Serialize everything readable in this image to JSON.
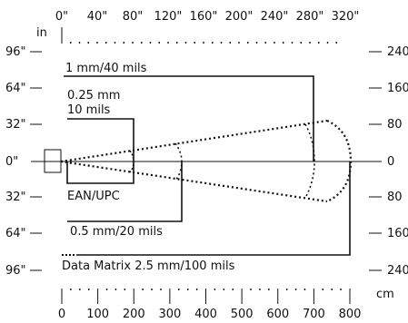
{
  "diagram": {
    "top_axis": {
      "unit": "in",
      "ticks": [
        "0\"",
        "40\"",
        "80\"",
        "120\"",
        "160\"",
        "200\"",
        "240\"",
        "280\"",
        "320\""
      ]
    },
    "bottom_axis": {
      "unit": "cm",
      "ticks": [
        "0",
        "100",
        "200",
        "300",
        "400",
        "500",
        "600",
        "700",
        "800"
      ]
    },
    "left_axis": {
      "ticks": [
        "96\"",
        "64\"",
        "32\"",
        "0\"",
        "32\"",
        "64\"",
        "96\""
      ]
    },
    "right_axis": {
      "ticks": [
        "240",
        "160",
        "80",
        "0",
        "80",
        "160",
        "240"
      ]
    },
    "labels": {
      "l40": "1 mm/40 mils",
      "l10a": "0.25 mm",
      "l10b": "10 mils",
      "ean": "EAN/UPC",
      "l20": "0.5 mm/20 mils",
      "dm": "Data Matrix 2.5 mm/100 mils"
    },
    "series": [
      {
        "id": "1mm-40mils",
        "max_range_cm": 700
      },
      {
        "id": "0.25mm-10mils",
        "max_range_cm": 200
      },
      {
        "id": "ean-upc",
        "max_range_cm": 200
      },
      {
        "id": "0.5mm-20mils",
        "max_range_cm": 335
      },
      {
        "id": "data-matrix",
        "max_range_cm": 800
      }
    ]
  }
}
